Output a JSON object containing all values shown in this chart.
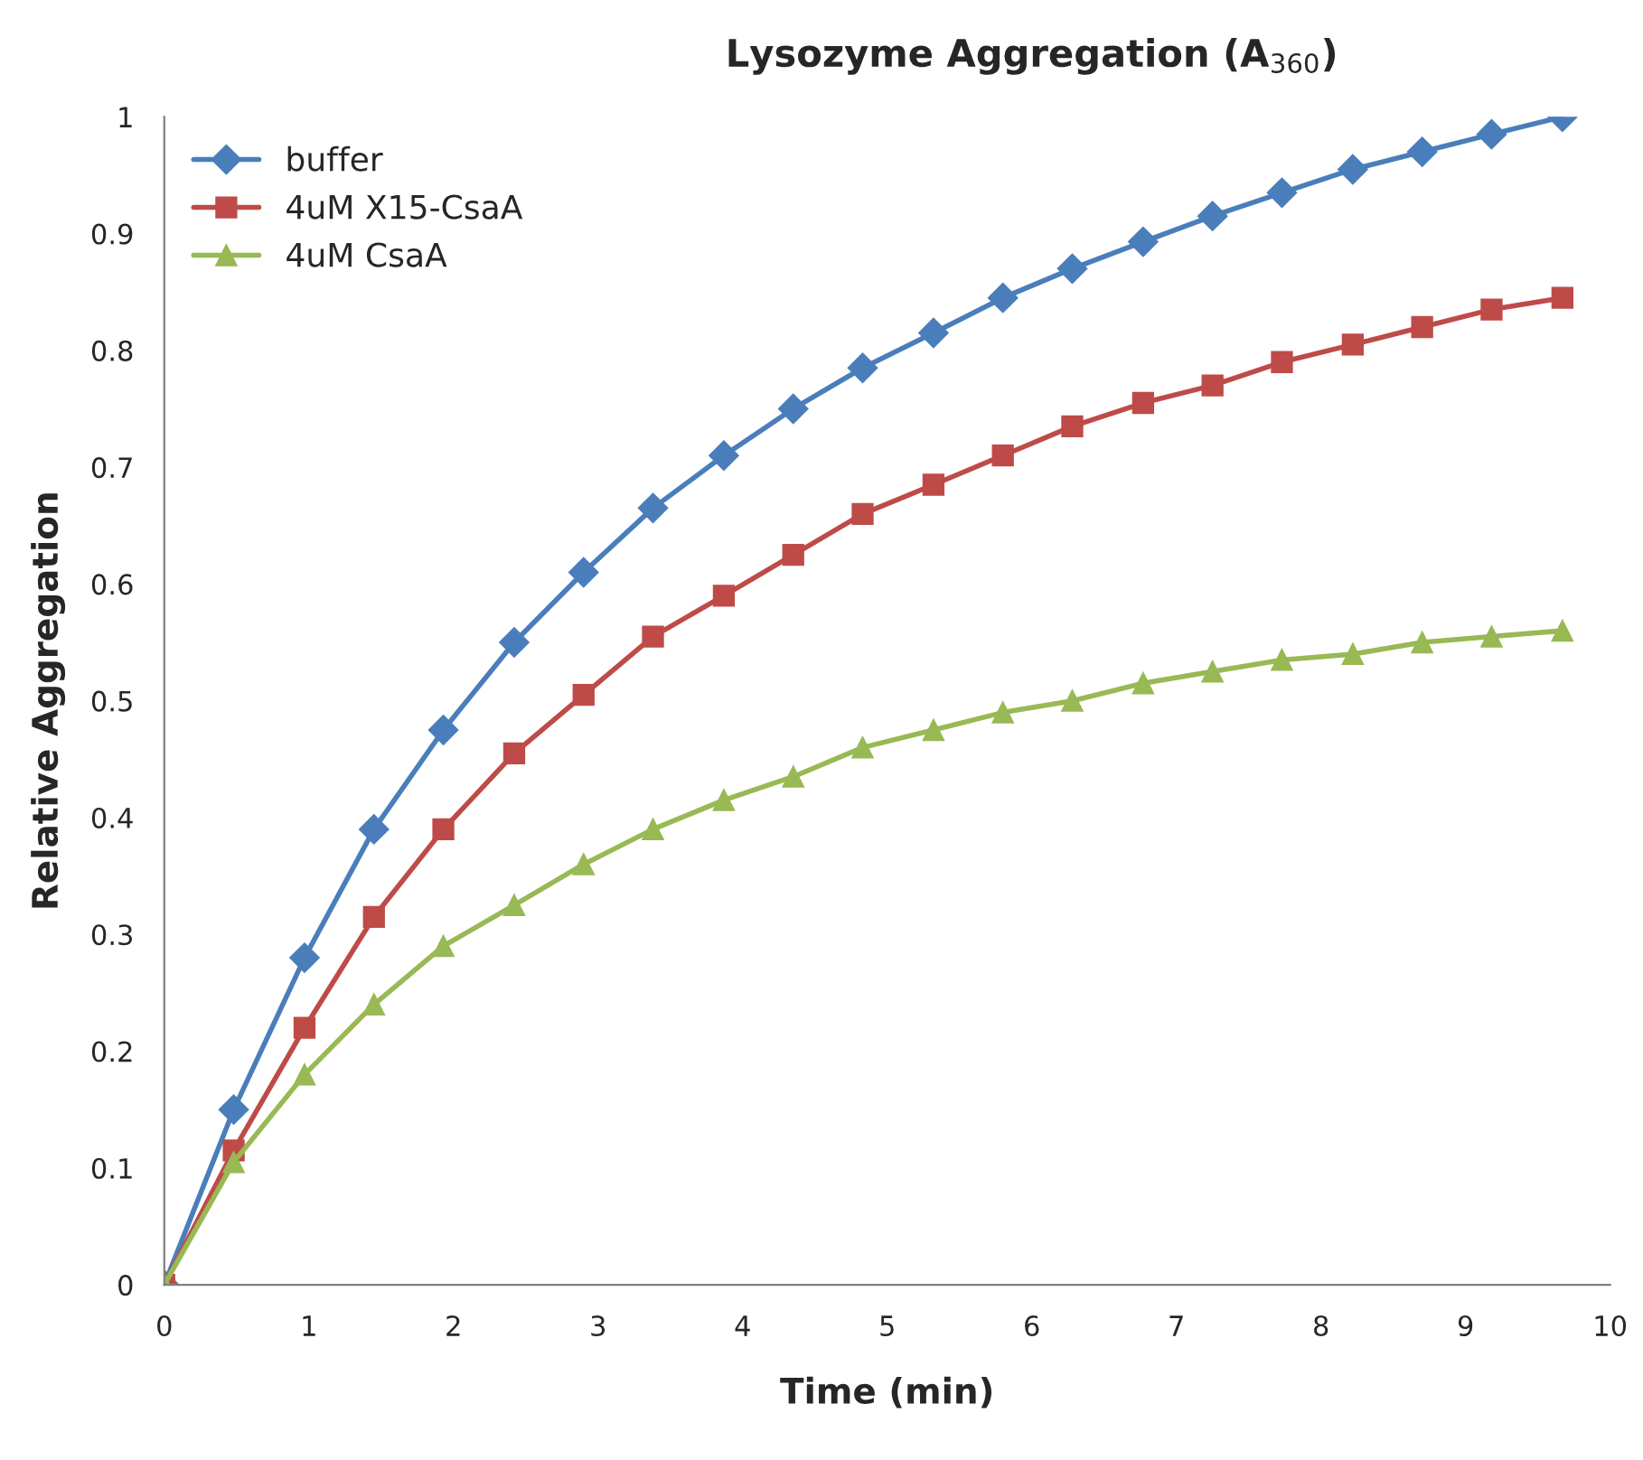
{
  "chart_data": {
    "type": "line",
    "title": "Lysozyme Aggregation (A$_{360}$)",
    "xlabel": "Time (min)",
    "ylabel": "Relative Aggregation",
    "x": [
      0,
      0.48,
      0.97,
      1.45,
      1.93,
      2.42,
      2.9,
      3.38,
      3.87,
      4.35,
      4.83,
      5.32,
      5.8,
      6.28,
      6.77,
      7.25,
      7.73,
      8.22,
      8.7,
      9.18,
      9.67
    ],
    "series": [
      {
        "name": "buffer",
        "color": "#4a7ebb",
        "marker": "diamond",
        "values": [
          0,
          0.15,
          0.28,
          0.39,
          0.475,
          0.55,
          0.61,
          0.665,
          0.71,
          0.75,
          0.785,
          0.815,
          0.845,
          0.87,
          0.893,
          0.915,
          0.935,
          0.955,
          0.97,
          0.985,
          1.0
        ]
      },
      {
        "name": "4uM X15-CsaA",
        "color": "#be4b48",
        "marker": "square",
        "values": [
          0,
          0.115,
          0.22,
          0.315,
          0.39,
          0.455,
          0.505,
          0.555,
          0.59,
          0.625,
          0.66,
          0.685,
          0.71,
          0.735,
          0.755,
          0.77,
          0.79,
          0.805,
          0.82,
          0.835,
          0.845
        ]
      },
      {
        "name": "4uM CsaA",
        "color": "#98b954",
        "marker": "triangle",
        "values": [
          0,
          0.105,
          0.18,
          0.24,
          0.29,
          0.325,
          0.36,
          0.39,
          0.415,
          0.435,
          0.46,
          0.475,
          0.49,
          0.5,
          0.515,
          0.525,
          0.535,
          0.54,
          0.55,
          0.555,
          0.56
        ]
      }
    ],
    "xlim": [
      0,
      10
    ],
    "xticks": [
      0,
      1,
      2,
      3,
      4,
      5,
      6,
      7,
      8,
      9,
      10
    ],
    "ylim": [
      0,
      1
    ],
    "yticks": [
      0,
      0.1,
      0.2,
      0.3,
      0.4,
      0.5,
      0.6,
      0.7,
      0.8,
      0.9,
      1
    ],
    "grid": false,
    "legend": "top left",
    "line_style": "solid"
  }
}
